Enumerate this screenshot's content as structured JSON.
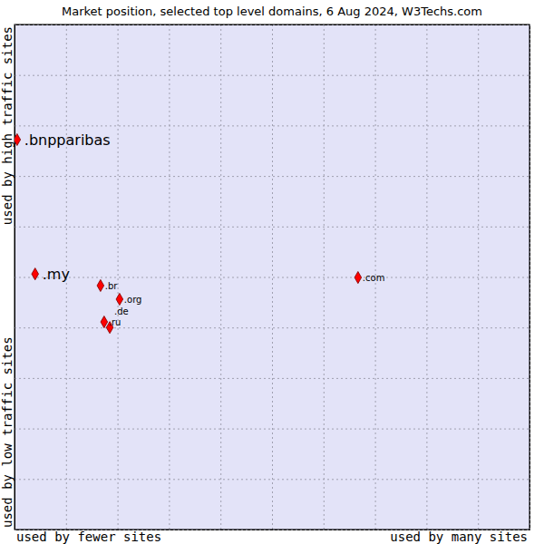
{
  "chart_data": {
    "type": "scatter",
    "title": "Market position, selected top level domains, 6 Aug 2024, W3Techs.com",
    "xlabels": [
      "used by fewer sites",
      "used by many sites"
    ],
    "ylabels": [
      "used by low traffic sites",
      "used by high traffic sites"
    ],
    "labels": [
      ".bnpparibas",
      ".my",
      ".br",
      ".org",
      ".ru",
      ".de",
      ".com"
    ],
    "x": [
      0.05,
      0.4,
      1.67,
      2.04,
      1.74,
      1.85,
      6.67
    ],
    "values": [
      7.72,
      5.06,
      4.83,
      4.56,
      4.11,
      4.0,
      4.99
    ],
    "color": "#ff0000",
    "marker": "diamond",
    "xlim": [
      0,
      10
    ],
    "ylim": [
      0,
      10
    ],
    "xticks": [
      0,
      1,
      2,
      3,
      4,
      5,
      6,
      7,
      8,
      9,
      10
    ],
    "yticks": [
      0,
      1,
      2,
      3,
      4,
      5,
      6,
      7,
      8,
      9,
      10
    ],
    "grid": true,
    "tick_labels": false
  }
}
